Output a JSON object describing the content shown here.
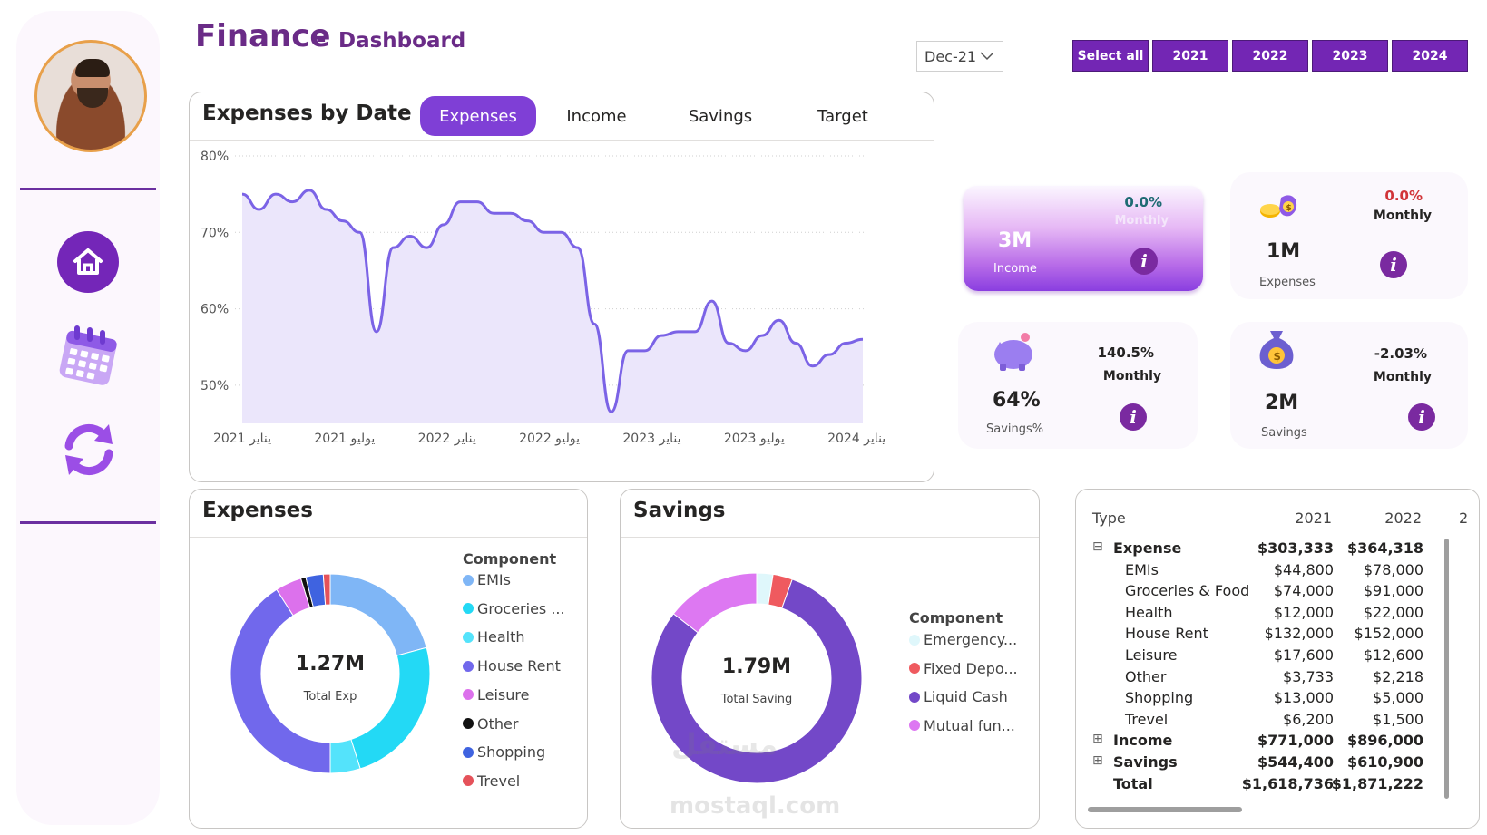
{
  "header": {
    "title": "Finance",
    "separator": "-",
    "subtitle": "Dashboard"
  },
  "date_filter": {
    "value": "Dec-21"
  },
  "year_buttons": [
    {
      "label": "Select all"
    },
    {
      "label": "2021"
    },
    {
      "label": "2022"
    },
    {
      "label": "2023"
    },
    {
      "label": "2024"
    }
  ],
  "sidebar": {
    "items": [
      {
        "name": "home-icon"
      },
      {
        "name": "calendar-icon"
      },
      {
        "name": "refresh-icon"
      }
    ]
  },
  "line_card": {
    "title": "Expenses by Date",
    "tabs": [
      {
        "label": "Expenses",
        "active": true
      },
      {
        "label": "Income",
        "active": false
      },
      {
        "label": "Savings",
        "active": false
      },
      {
        "label": "Target",
        "active": false
      }
    ]
  },
  "kpis": {
    "income": {
      "pct": "0.0%",
      "period": "Monthly",
      "value": "3M",
      "label": "Income",
      "color": "#1e6b73"
    },
    "expenses": {
      "pct": "0.0%",
      "period": "Monthly",
      "value": "1M",
      "label": "Expenses",
      "color": "#d13438"
    },
    "savings_pct": {
      "pct": "140.5%",
      "period": "Monthly",
      "value": "64%",
      "label": "Savings%"
    },
    "savings": {
      "pct": "-2.03%",
      "period": "Monthly",
      "value": "2M",
      "label": "Savings"
    }
  },
  "expenses_card": {
    "title": "Expenses",
    "center_value": "1.27M",
    "center_label": "Total Exp",
    "legend_title": "Component"
  },
  "savings_card": {
    "title": "Savings",
    "center_value": "1.79M",
    "center_label": "Total Saving",
    "legend_title": "Component"
  },
  "table": {
    "headers": [
      "Type",
      "2021",
      "2022"
    ],
    "rows": [
      {
        "label": "Expense",
        "v2021": "$303,333",
        "v2022": "$364,318",
        "level": 0,
        "bold": true,
        "toggle": "⊟"
      },
      {
        "label": "EMIs",
        "v2021": "$44,800",
        "v2022": "$78,000",
        "level": 1
      },
      {
        "label": "Groceries & Food",
        "v2021": "$74,000",
        "v2022": "$91,000",
        "level": 1
      },
      {
        "label": "Health",
        "v2021": "$12,000",
        "v2022": "$22,000",
        "level": 1
      },
      {
        "label": "House Rent",
        "v2021": "$132,000",
        "v2022": "$152,000",
        "level": 1
      },
      {
        "label": "Leisure",
        "v2021": "$17,600",
        "v2022": "$12,600",
        "level": 1
      },
      {
        "label": "Other",
        "v2021": "$3,733",
        "v2022": "$2,218",
        "level": 1
      },
      {
        "label": "Shopping",
        "v2021": "$13,000",
        "v2022": "$5,000",
        "level": 1
      },
      {
        "label": "Trevel",
        "v2021": "$6,200",
        "v2022": "$1,500",
        "level": 1
      },
      {
        "label": "Income",
        "v2021": "$771,000",
        "v2022": "$896,000",
        "level": 0,
        "bold": true,
        "toggle": "⊞"
      },
      {
        "label": "Savings",
        "v2021": "$544,400",
        "v2022": "$610,900",
        "level": 0,
        "bold": true,
        "toggle": "⊞"
      },
      {
        "label": "Total",
        "v2021": "$1,618,736",
        "v2022": "$1,871,222",
        "level": 0,
        "bold": true,
        "toggle": ""
      }
    ]
  },
  "watermark": {
    "line1": "مستقل",
    "line2": "mostaql.com"
  },
  "chart_data": [
    {
      "type": "area",
      "title": "Expenses by Date",
      "x_ticks": [
        "يناير 2021",
        "يوليو 2021",
        "يناير 2022",
        "يوليو 2022",
        "يناير 2023",
        "يوليو 2023",
        "يناير 2024"
      ],
      "y_ticks": [
        "50%",
        "60%",
        "70%",
        "80%"
      ],
      "ylim": [
        45,
        80
      ],
      "grid": true,
      "color": "#7b63e6",
      "fill": "#ebe6fb",
      "x": [
        "2021-01",
        "2021-02",
        "2021-03",
        "2021-04",
        "2021-05",
        "2021-06",
        "2021-07",
        "2021-08",
        "2021-09",
        "2021-10",
        "2021-11",
        "2021-12",
        "2022-01",
        "2022-02",
        "2022-03",
        "2022-04",
        "2022-05",
        "2022-06",
        "2022-07",
        "2022-08",
        "2022-09",
        "2022-10",
        "2022-11",
        "2022-12",
        "2023-01",
        "2023-02",
        "2023-03",
        "2023-04",
        "2023-05",
        "2023-06",
        "2023-07",
        "2023-08",
        "2023-09",
        "2023-10",
        "2023-11",
        "2023-12",
        "2024-01",
        "2024-02"
      ],
      "values": [
        75,
        73,
        75,
        74,
        75.5,
        73,
        71.5,
        70,
        57,
        68,
        69.5,
        68,
        71,
        74,
        74,
        72.5,
        72.5,
        71.5,
        70,
        70,
        68,
        58,
        46.5,
        54.5,
        54.5,
        56.5,
        57,
        57,
        61,
        55.5,
        54.5,
        56.5,
        58.5,
        55.5,
        52.5,
        54,
        55.5,
        56
      ]
    },
    {
      "type": "pie",
      "title": "Expenses",
      "legend_title": "Component",
      "total_label": "1.27M",
      "legend_position": "right",
      "categories": [
        "EMIs",
        "Groceries ...",
        "Health",
        "House Rent",
        "Leisure",
        "Other",
        "Shopping",
        "Trevel"
      ],
      "values": [
        20.5,
        24,
        4.8,
        40.4,
        4.2,
        0.8,
        2.8,
        1.1
      ],
      "colors": [
        "#7fb6f6",
        "#23d9f5",
        "#54e3fb",
        "#7168ec",
        "#dc71ec",
        "#111111",
        "#3f63e0",
        "#e5525a"
      ]
    },
    {
      "type": "pie",
      "title": "Savings",
      "legend_title": "Component",
      "total_label": "1.79M",
      "legend_position": "right",
      "categories": [
        "Emergency...",
        "Fixed Depo...",
        "Liquid Cash",
        "Mutual fun..."
      ],
      "values": [
        2.5,
        3,
        80,
        14.5
      ],
      "colors": [
        "#dff7fb",
        "#ef5a5f",
        "#7348c8",
        "#dd78f2"
      ]
    }
  ]
}
